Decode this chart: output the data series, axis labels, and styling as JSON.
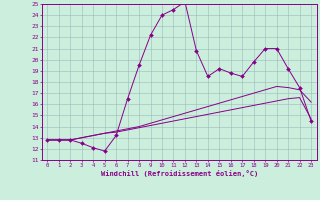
{
  "xlabel": "Windchill (Refroidissement éolien,°C)",
  "bg_color": "#cceedd",
  "line_color": "#880088",
  "grid_color": "#99bbbb",
  "xlim": [
    -0.5,
    23.5
  ],
  "ylim": [
    11,
    25
  ],
  "xticks": [
    0,
    1,
    2,
    3,
    4,
    5,
    6,
    7,
    8,
    9,
    10,
    11,
    12,
    13,
    14,
    15,
    16,
    17,
    18,
    19,
    20,
    21,
    22,
    23
  ],
  "yticks": [
    11,
    12,
    13,
    14,
    15,
    16,
    17,
    18,
    19,
    20,
    21,
    22,
    23,
    24,
    25
  ],
  "series1": [
    [
      0,
      12.8
    ],
    [
      1,
      12.8
    ],
    [
      2,
      12.8
    ],
    [
      3,
      12.5
    ],
    [
      4,
      12.1
    ],
    [
      5,
      11.8
    ],
    [
      6,
      13.2
    ],
    [
      7,
      16.5
    ],
    [
      8,
      19.5
    ],
    [
      9,
      22.2
    ],
    [
      10,
      24.0
    ],
    [
      11,
      24.5
    ],
    [
      12,
      25.2
    ],
    [
      13,
      20.8
    ],
    [
      14,
      18.5
    ],
    [
      15,
      19.2
    ],
    [
      16,
      18.8
    ],
    [
      17,
      18.5
    ],
    [
      18,
      19.8
    ],
    [
      19,
      21.0
    ],
    [
      20,
      21.0
    ],
    [
      21,
      19.2
    ],
    [
      22,
      17.5
    ],
    [
      23,
      14.5
    ]
  ],
  "series2": [
    [
      0,
      12.8
    ],
    [
      1,
      12.8
    ],
    [
      2,
      12.8
    ],
    [
      3,
      13.0
    ],
    [
      4,
      13.2
    ],
    [
      5,
      13.4
    ],
    [
      6,
      13.6
    ],
    [
      7,
      13.8
    ],
    [
      8,
      14.0
    ],
    [
      9,
      14.3
    ],
    [
      10,
      14.6
    ],
    [
      11,
      14.9
    ],
    [
      12,
      15.2
    ],
    [
      13,
      15.5
    ],
    [
      14,
      15.8
    ],
    [
      15,
      16.1
    ],
    [
      16,
      16.4
    ],
    [
      17,
      16.7
    ],
    [
      18,
      17.0
    ],
    [
      19,
      17.3
    ],
    [
      20,
      17.6
    ],
    [
      21,
      17.5
    ],
    [
      22,
      17.3
    ],
    [
      23,
      16.2
    ]
  ],
  "series3": [
    [
      0,
      12.8
    ],
    [
      1,
      12.8
    ],
    [
      2,
      12.8
    ],
    [
      3,
      13.0
    ],
    [
      4,
      13.2
    ],
    [
      5,
      13.4
    ],
    [
      6,
      13.5
    ],
    [
      7,
      13.7
    ],
    [
      8,
      13.9
    ],
    [
      9,
      14.1
    ],
    [
      10,
      14.3
    ],
    [
      11,
      14.5
    ],
    [
      12,
      14.7
    ],
    [
      13,
      14.9
    ],
    [
      14,
      15.1
    ],
    [
      15,
      15.3
    ],
    [
      16,
      15.5
    ],
    [
      17,
      15.7
    ],
    [
      18,
      15.9
    ],
    [
      19,
      16.1
    ],
    [
      20,
      16.3
    ],
    [
      21,
      16.5
    ],
    [
      22,
      16.6
    ],
    [
      23,
      14.7
    ]
  ]
}
